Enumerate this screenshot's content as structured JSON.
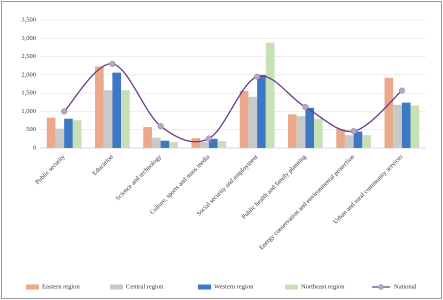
{
  "chart_data": {
    "type": "bar_line",
    "categories": [
      "Public security",
      "Education",
      "Science and technology",
      "Culture, sports and mass media",
      "Social security and employment",
      "Public health and family planning",
      "Energy conservation and environmental protection",
      "Urban and rural community services"
    ],
    "series": [
      {
        "name": "Eastern region",
        "type": "bar",
        "color": "#eaa98a",
        "values": [
          830,
          2230,
          570,
          270,
          1560,
          920,
          520,
          1920
        ]
      },
      {
        "name": "Central region",
        "type": "bar",
        "color": "#c9c9c9",
        "values": [
          530,
          1580,
          280,
          170,
          1400,
          870,
          350,
          1180
        ]
      },
      {
        "name": "Western region",
        "type": "bar",
        "color": "#3d78c2",
        "values": [
          800,
          2060,
          200,
          250,
          2000,
          1100,
          450,
          1240
        ]
      },
      {
        "name": "Northeast region",
        "type": "bar",
        "color": "#c6e1b5",
        "values": [
          760,
          1580,
          160,
          190,
          2880,
          800,
          350,
          1160
        ]
      },
      {
        "name": "National",
        "type": "line",
        "color": "#6a3a8c",
        "marker_color": "#b7a6c6",
        "values": [
          1000,
          2300,
          600,
          260,
          1950,
          1120,
          460,
          1570
        ]
      }
    ],
    "ylim": [
      0,
      3500
    ],
    "yticks": [
      0,
      500,
      {
        "value": 1000,
        "label": "1,000"
      },
      {
        "value": 1500,
        "label": "1,500"
      },
      {
        "value": 2000,
        "label": "2,000"
      },
      {
        "value": 2500,
        "label": "2,500"
      },
      {
        "value": 3000,
        "label": "3,000"
      },
      {
        "value": 3500,
        "label": "3,500"
      }
    ],
    "legend": "bottom"
  }
}
